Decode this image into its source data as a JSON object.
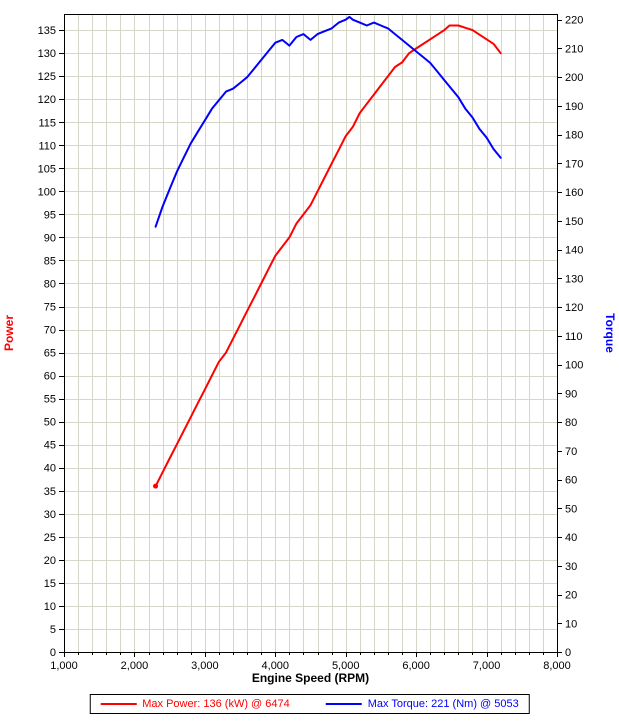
{
  "colors": {
    "power": "#ff0000",
    "torque": "#0000ff",
    "grid": "#d6d6c8",
    "axis": "#000000",
    "background": "#ffffff"
  },
  "chart_data": {
    "type": "line",
    "title": "",
    "xlabel": "Engine Speed (RPM)",
    "ylabel_left": "Power",
    "ylabel_right": "Torque",
    "legend_position": "bottom",
    "legend": {
      "power": "Max Power: 136 (kW) @ 6474",
      "torque": "Max Torque: 221 (Nm) @ 5053"
    },
    "x_range": [
      1000,
      8000
    ],
    "left_y_range": [
      0,
      138.5
    ],
    "right_y_range": [
      0,
      222
    ],
    "x_ticks": [
      1000,
      2000,
      3000,
      4000,
      5000,
      6000,
      7000,
      8000
    ],
    "x_tick_labels": [
      "1,000",
      "2,000",
      "3,000",
      "4,000",
      "5,000",
      "6,000",
      "7,000",
      "8,000"
    ],
    "x_minor_step": 200,
    "left_ticks": [
      0,
      5,
      10,
      15,
      20,
      25,
      30,
      35,
      40,
      45,
      50,
      55,
      60,
      65,
      70,
      75,
      80,
      85,
      90,
      95,
      100,
      105,
      110,
      115,
      120,
      125,
      130,
      135
    ],
    "right_ticks": [
      0,
      10,
      20,
      30,
      40,
      50,
      60,
      70,
      80,
      90,
      100,
      110,
      120,
      130,
      140,
      150,
      160,
      170,
      180,
      190,
      200,
      210,
      220
    ],
    "grid": {
      "on": true,
      "x_step": 200,
      "left_step": 5
    },
    "series": [
      {
        "name": "Power",
        "unit": "kW",
        "axis": "left",
        "color": "#ff0000",
        "marker_first": true,
        "max": {
          "value": 136,
          "rpm": 6474
        },
        "x": [
          2300,
          2400,
          2500,
          2600,
          2700,
          2800,
          2900,
          3000,
          3100,
          3200,
          3300,
          3400,
          3500,
          3600,
          3700,
          3800,
          3900,
          4000,
          4100,
          4200,
          4300,
          4400,
          4500,
          4600,
          4700,
          4800,
          4900,
          5000,
          5100,
          5200,
          5300,
          5400,
          5500,
          5600,
          5700,
          5800,
          5900,
          6000,
          6100,
          6200,
          6300,
          6400,
          6474,
          6500,
          6600,
          6700,
          6800,
          6900,
          7000,
          7100,
          7200
        ],
        "y": [
          36,
          39,
          42,
          45,
          48,
          51,
          54,
          57,
          60,
          63,
          65,
          68,
          71,
          74,
          77,
          80,
          83,
          86,
          88,
          90,
          93,
          95,
          97,
          100,
          103,
          106,
          109,
          112,
          114,
          117,
          119,
          121,
          123,
          125,
          127,
          128,
          130,
          131,
          132,
          133,
          134,
          135,
          136,
          136,
          136,
          135.5,
          135,
          134,
          133,
          132,
          130
        ]
      },
      {
        "name": "Torque",
        "unit": "Nm",
        "axis": "right",
        "color": "#0000ff",
        "marker_first": false,
        "max": {
          "value": 221,
          "rpm": 5053
        },
        "x": [
          2300,
          2400,
          2500,
          2600,
          2700,
          2800,
          2900,
          3000,
          3100,
          3200,
          3300,
          3400,
          3500,
          3600,
          3700,
          3800,
          3900,
          4000,
          4100,
          4200,
          4300,
          4400,
          4500,
          4600,
          4700,
          4800,
          4900,
          5000,
          5053,
          5100,
          5200,
          5300,
          5400,
          5500,
          5600,
          5700,
          5800,
          5900,
          6000,
          6100,
          6200,
          6300,
          6400,
          6500,
          6600,
          6700,
          6800,
          6900,
          7000,
          7100,
          7200
        ],
        "y": [
          148,
          155,
          161,
          167,
          172,
          177,
          181,
          185,
          189,
          192,
          195,
          196,
          198,
          200,
          203,
          206,
          209,
          212,
          213,
          211,
          214,
          215,
          213,
          215,
          216,
          217,
          219,
          220,
          221,
          220,
          219,
          218,
          219,
          218,
          217,
          215,
          213,
          211,
          209,
          207,
          205,
          202,
          199,
          196,
          193,
          189,
          186,
          182,
          179,
          175,
          172
        ]
      }
    ]
  }
}
